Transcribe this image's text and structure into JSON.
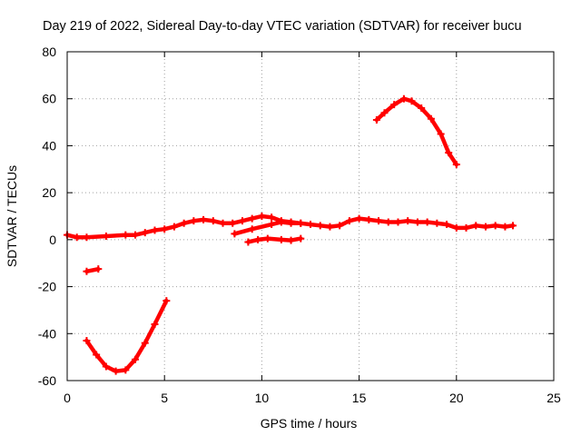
{
  "chart_data": {
    "type": "line",
    "title": "Day 219 of 2022, Sidereal Day-to-day VTEC variation (SDTVAR) for receiver bucu",
    "xlabel": "GPS time / hours",
    "ylabel": "SDTVAR / TECUs",
    "xlim": [
      0,
      25
    ],
    "ylim": [
      -60,
      80
    ],
    "xticks": [
      0,
      5,
      10,
      15,
      20,
      25
    ],
    "yticks": [
      -60,
      -40,
      -20,
      0,
      20,
      40,
      60,
      80
    ],
    "grid": true,
    "color": "#ff0000",
    "marker": "plus",
    "series": [
      {
        "name": "main",
        "points": [
          [
            0,
            2
          ],
          [
            0.5,
            1
          ],
          [
            1,
            1
          ],
          [
            2,
            1.5
          ],
          [
            3,
            2
          ],
          [
            3.5,
            2
          ],
          [
            4,
            3
          ],
          [
            4.5,
            4
          ],
          [
            5,
            4.5
          ],
          [
            5.5,
            5.5
          ],
          [
            6,
            7
          ],
          [
            6.5,
            8
          ],
          [
            7,
            8.5
          ],
          [
            7.5,
            8
          ],
          [
            8,
            7
          ],
          [
            8.5,
            7
          ],
          [
            9,
            8
          ],
          [
            9.5,
            9
          ],
          [
            10,
            10
          ],
          [
            10.5,
            9.5
          ],
          [
            11,
            8
          ],
          [
            11.5,
            7.5
          ],
          [
            12,
            7
          ],
          [
            12.5,
            6.5
          ],
          [
            13,
            6
          ],
          [
            13.5,
            5.5
          ],
          [
            14,
            6
          ],
          [
            14.5,
            8
          ],
          [
            15,
            9
          ],
          [
            15.5,
            8.5
          ],
          [
            16,
            8
          ],
          [
            16.5,
            7.5
          ],
          [
            17,
            7.5
          ],
          [
            17.5,
            8
          ],
          [
            18,
            7.5
          ],
          [
            18.5,
            7.5
          ],
          [
            19,
            7
          ],
          [
            19.5,
            6.5
          ],
          [
            20,
            5
          ],
          [
            20.5,
            5
          ],
          [
            21,
            6
          ],
          [
            21.5,
            5.5
          ],
          [
            22,
            6
          ],
          [
            22.5,
            5.5
          ],
          [
            22.9,
            6
          ]
        ]
      },
      {
        "name": "branch-a",
        "points": [
          [
            8.6,
            2.5
          ],
          [
            9.5,
            4.5
          ],
          [
            10.5,
            6.5
          ],
          [
            11,
            7.5
          ],
          [
            11.5,
            7
          ],
          [
            12,
            7
          ]
        ]
      },
      {
        "name": "branch-b",
        "points": [
          [
            9.3,
            -1
          ],
          [
            9.8,
            0
          ],
          [
            10.3,
            0.5
          ],
          [
            11,
            0
          ],
          [
            11.5,
            -0.3
          ],
          [
            12,
            0.5
          ]
        ]
      },
      {
        "name": "arc-positive",
        "points": [
          [
            15.9,
            51
          ],
          [
            16.3,
            54
          ],
          [
            16.8,
            57.5
          ],
          [
            17.3,
            60
          ],
          [
            17.7,
            59
          ],
          [
            18.2,
            56
          ],
          [
            18.7,
            51.5
          ],
          [
            19.2,
            45
          ],
          [
            19.6,
            37
          ],
          [
            20,
            32
          ]
        ]
      },
      {
        "name": "arc-negative",
        "points": [
          [
            1,
            -43
          ],
          [
            1.5,
            -49
          ],
          [
            2,
            -54
          ],
          [
            2.5,
            -56
          ],
          [
            3,
            -55.5
          ],
          [
            3.5,
            -51
          ],
          [
            4,
            -44
          ],
          [
            4.5,
            -36
          ],
          [
            5.1,
            -26
          ]
        ]
      },
      {
        "name": "fragment",
        "points": [
          [
            1,
            -13.5
          ],
          [
            1.6,
            -12.5
          ]
        ]
      }
    ]
  }
}
